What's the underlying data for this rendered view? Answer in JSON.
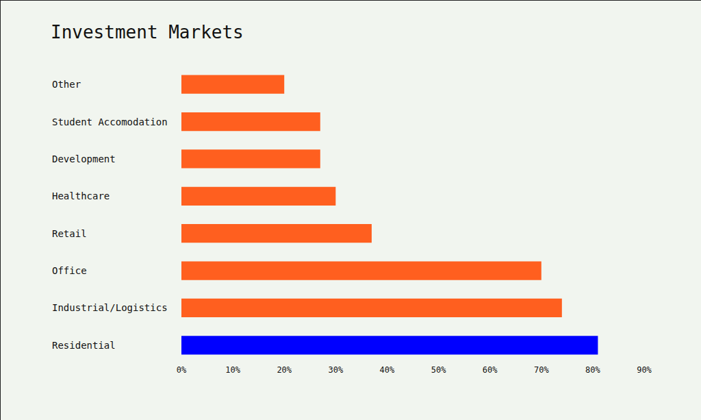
{
  "chart_data": {
    "type": "bar",
    "orientation": "horizontal",
    "title": "Investment Markets",
    "categories": [
      "Other",
      "Student Accomodation",
      "Development",
      "Healthcare",
      "Retail",
      "Office",
      "Industrial/Logistics",
      "Residential"
    ],
    "values": [
      20,
      27,
      27,
      30,
      37,
      70,
      74,
      81
    ],
    "colors": [
      "#ff5f1f",
      "#ff5f1f",
      "#ff5f1f",
      "#ff5f1f",
      "#ff5f1f",
      "#ff5f1f",
      "#ff5f1f",
      "#0000ff"
    ],
    "xlim": [
      0,
      90
    ],
    "xticks": [
      {
        "value": 0,
        "label": "0%"
      },
      {
        "value": 10,
        "label": "10%"
      },
      {
        "value": 20,
        "label": "20%"
      },
      {
        "value": 30,
        "label": "30%"
      },
      {
        "value": 40,
        "label": "40%"
      },
      {
        "value": 50,
        "label": "50%"
      },
      {
        "value": 60,
        "label": "60%"
      },
      {
        "value": 70,
        "label": "70%"
      },
      {
        "value": 80,
        "label": "80%"
      },
      {
        "value": 90,
        "label": "90%"
      }
    ],
    "grid": false
  }
}
